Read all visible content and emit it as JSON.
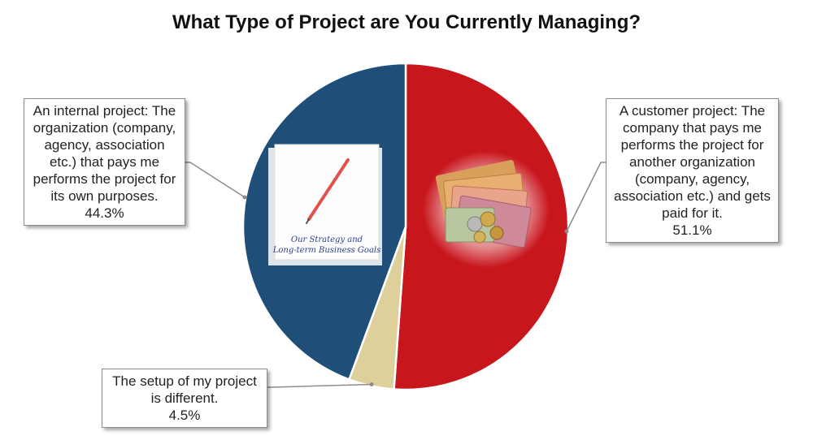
{
  "chart_data": {
    "type": "pie",
    "title": "What Type of Project are You Currently Managing?",
    "slices": [
      {
        "label": "A customer project: The company that pays me performs the project for another organization (company, agency, association etc.) and gets paid for it.",
        "value": 51.1,
        "value_label": "51.1%",
        "color": "#c8161d"
      },
      {
        "label": "The setup of my project is different.",
        "value": 4.5,
        "value_label": "4.5%",
        "color": "#ddd09b"
      },
      {
        "label": "An internal project: The organization (company, agency, association etc.) that pays me performs the project for its own purposes.",
        "value": 44.3,
        "value_label": "44.3%",
        "color": "#1f4e79"
      }
    ],
    "legend": "callouts"
  },
  "illustrations": {
    "internal_note": "Our Strategy and Long-term Business Goals"
  }
}
